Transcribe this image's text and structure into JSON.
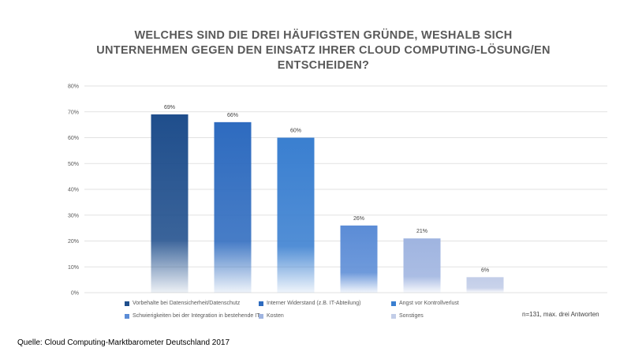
{
  "title_lines": [
    "WELCHES SIND DIE DREI HÄUFIGSTEN GRÜNDE, WESHALB SICH",
    "UNTERNEHMEN GEGEN DEN EINSATZ IHRER CLOUD COMPUTING-LÖSUNG/EN",
    "ENTSCHEIDEN?"
  ],
  "note": "n=131, max. drei Antworten",
  "source": "Quelle: Cloud Computing-Marktbarometer Deutschland 2017",
  "chart_data": {
    "type": "bar",
    "title": "WELCHES SIND DIE DREI HÄUFIGSTEN GRÜNDE, WESHALB SICH UNTERNEHMEN GEGEN DEN EINSATZ IHRER CLOUD COMPUTING-LÖSUNG/EN ENTSCHEIDEN?",
    "xlabel": "",
    "ylabel": "",
    "ylim": [
      0,
      80
    ],
    "ytick_step": 10,
    "yticks": [
      "0%",
      "10%",
      "20%",
      "30%",
      "40%",
      "50%",
      "60%",
      "70%",
      "80%"
    ],
    "grid": true,
    "legend_position": "bottom",
    "categories": [
      "Vorbehalte bei Datensicherheit/Datenschutz",
      "Interner Widerstand (z.B. IT-Abteilung)",
      "Angst vor Kontrollverlust",
      "Schwierigkeiten bei der Integration in bestehende IT",
      "Kosten",
      "Sonstiges"
    ],
    "values": [
      69,
      66,
      60,
      26,
      21,
      6
    ],
    "labels": [
      "69%",
      "66%",
      "60%",
      "26%",
      "21%",
      "6%"
    ],
    "colors": [
      "#1f4e8c",
      "#2e6bbf",
      "#3a7fd0",
      "#5b8cd6",
      "#9fb4e0",
      "#c2cde8"
    ]
  }
}
